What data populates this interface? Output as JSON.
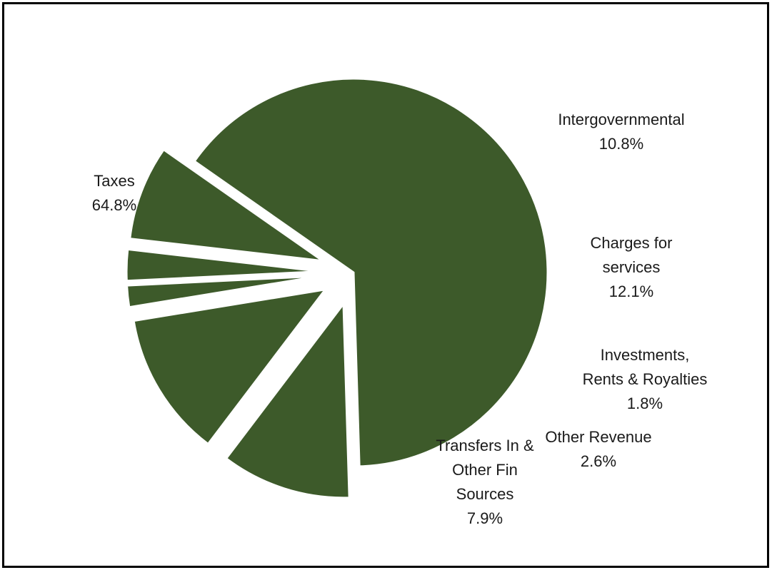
{
  "chart_data": {
    "type": "pie",
    "title": "",
    "color": "#3d5a2a",
    "exploded": true,
    "slices": [
      {
        "label_lines": [
          "Taxes"
        ],
        "value": 64.8,
        "pct_label": "64.8%"
      },
      {
        "label_lines": [
          "Intergovernmental"
        ],
        "value": 10.8,
        "pct_label": "10.8%"
      },
      {
        "label_lines": [
          "Charges for",
          "services"
        ],
        "value": 12.1,
        "pct_label": "12.1%"
      },
      {
        "label_lines": [
          "Investments,",
          "Rents & Royalties"
        ],
        "value": 1.8,
        "pct_label": "1.8%"
      },
      {
        "label_lines": [
          "Other Revenue"
        ],
        "value": 2.6,
        "pct_label": "2.6%"
      },
      {
        "label_lines": [
          "Transfers In &",
          "Other Fin",
          "Sources"
        ],
        "value": 7.9,
        "pct_label": "7.9%"
      }
    ]
  }
}
